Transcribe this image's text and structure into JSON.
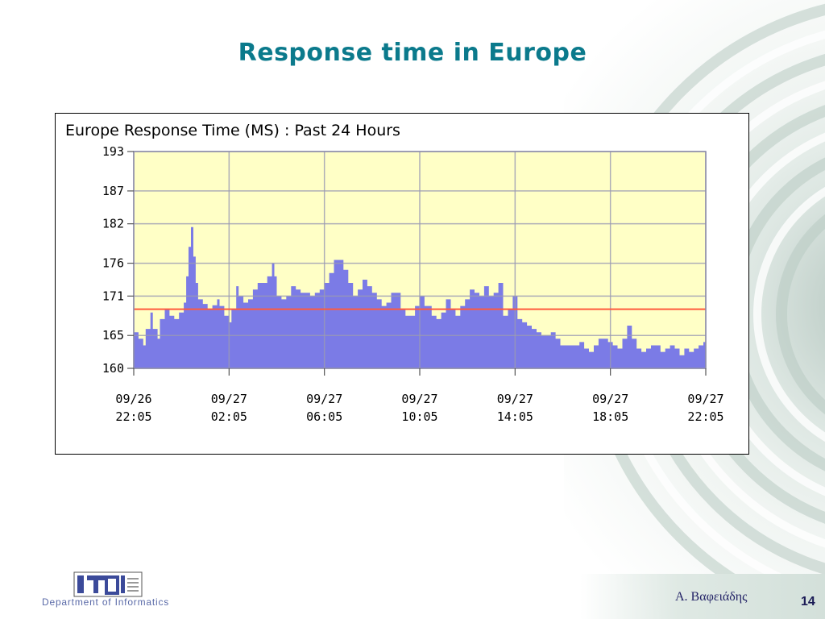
{
  "slide": {
    "title": "Response time in Europe",
    "author": "Α. Βαφειάδης",
    "page_number": "14",
    "logo_text": "Department of Informatics",
    "accent_color": "#0b7a8c"
  },
  "chart_data": {
    "type": "area",
    "title": "Europe Response Time (MS) : Past 24 Hours",
    "xlabel": "",
    "ylabel": "",
    "ylim": [
      160,
      193
    ],
    "y_ticks": [
      193,
      187,
      182,
      176,
      171,
      165,
      160
    ],
    "x_range_hours": [
      0,
      24
    ],
    "x_ticks": [
      {
        "hour": 0,
        "date": "09/26",
        "time": "22:05"
      },
      {
        "hour": 4,
        "date": "09/27",
        "time": "02:05"
      },
      {
        "hour": 8,
        "date": "09/27",
        "time": "06:05"
      },
      {
        "hour": 12,
        "date": "09/27",
        "time": "10:05"
      },
      {
        "hour": 16,
        "date": "09/27",
        "time": "14:05"
      },
      {
        "hour": 20,
        "date": "09/27",
        "time": "18:05"
      },
      {
        "hour": 24,
        "date": "09/27",
        "time": "22:05"
      }
    ],
    "threshold": 169,
    "colors": {
      "plot_background": "#ffffc6",
      "area_fill": "#7b7be6",
      "threshold_line": "#ff5a3c",
      "grid_line": "#9a9ab4"
    },
    "grid": true,
    "series": [
      {
        "x": [
          0,
          0.2,
          0.4,
          0.5,
          0.7,
          0.8,
          1.0,
          1.1,
          1.3,
          1.5,
          1.7,
          1.9,
          2.1,
          2.2,
          2.3,
          2.4,
          2.5,
          2.6,
          2.7,
          2.9,
          3.1,
          3.3,
          3.5,
          3.6,
          3.8,
          4.0,
          4.1,
          4.3,
          4.4,
          4.6,
          4.8,
          5.0,
          5.2,
          5.4,
          5.6,
          5.8,
          5.9,
          6.0,
          6.2,
          6.4,
          6.6,
          6.8,
          7.0,
          7.2,
          7.4,
          7.6,
          7.8,
          8.0,
          8.2,
          8.4,
          8.6,
          8.8,
          9.0,
          9.2,
          9.4,
          9.6,
          9.8,
          10.0,
          10.2,
          10.4,
          10.6,
          10.8,
          11.0,
          11.2,
          11.4,
          11.6,
          11.8,
          12.0,
          12.2,
          12.5,
          12.7,
          12.9,
          13.1,
          13.3,
          13.5,
          13.7,
          13.9,
          14.1,
          14.3,
          14.5,
          14.7,
          14.9,
          15.1,
          15.3,
          15.5,
          15.7,
          15.9,
          16.1,
          16.3,
          16.5,
          16.7,
          16.9,
          17.1,
          17.3,
          17.5,
          17.7,
          17.9,
          18.1,
          18.3,
          18.5,
          18.7,
          18.9,
          19.1,
          19.3,
          19.5,
          19.7,
          19.9,
          20.1,
          20.3,
          20.5,
          20.7,
          20.9,
          21.1,
          21.3,
          21.5,
          21.7,
          21.9,
          22.1,
          22.3,
          22.5,
          22.7,
          22.9,
          23.1,
          23.3,
          23.5,
          23.7,
          23.9,
          24.0
        ],
        "values": [
          165.5,
          164.5,
          163.5,
          166.0,
          168.5,
          166.0,
          164.5,
          167.5,
          169.0,
          168.0,
          167.5,
          168.5,
          170.0,
          174.0,
          178.5,
          181.5,
          177.0,
          173.0,
          170.5,
          169.8,
          169.0,
          169.6,
          170.5,
          169.5,
          168.0,
          167.0,
          169.0,
          172.5,
          171.0,
          170.0,
          170.5,
          172.0,
          173.0,
          173.0,
          174.0,
          176.0,
          174.0,
          171.0,
          170.5,
          171.0,
          172.5,
          172.0,
          171.5,
          171.5,
          171.0,
          171.5,
          172.0,
          173.0,
          174.5,
          176.5,
          176.5,
          175.0,
          173.0,
          171.0,
          172.0,
          173.5,
          172.5,
          171.5,
          170.5,
          169.5,
          170.0,
          171.5,
          171.5,
          169.0,
          168.0,
          168.0,
          169.5,
          171.0,
          169.5,
          168.0,
          167.5,
          168.5,
          170.5,
          169.0,
          168.0,
          169.5,
          170.5,
          172.0,
          171.5,
          171.0,
          172.5,
          171.0,
          171.5,
          173.0,
          168.0,
          169.0,
          171.0,
          167.5,
          167.0,
          166.5,
          166.0,
          165.5,
          165.0,
          165.0,
          165.5,
          164.5,
          163.5,
          163.5,
          163.5,
          163.5,
          164.0,
          163.0,
          162.5,
          163.5,
          164.5,
          164.5,
          164.0,
          163.5,
          163.0,
          164.5,
          166.5,
          164.5,
          163.0,
          162.5,
          163.0,
          163.5,
          163.5,
          162.5,
          163.0,
          163.5,
          163.0,
          162.0,
          163.0,
          162.5,
          163.0,
          163.5,
          164.0,
          163.0
        ]
      }
    ]
  }
}
